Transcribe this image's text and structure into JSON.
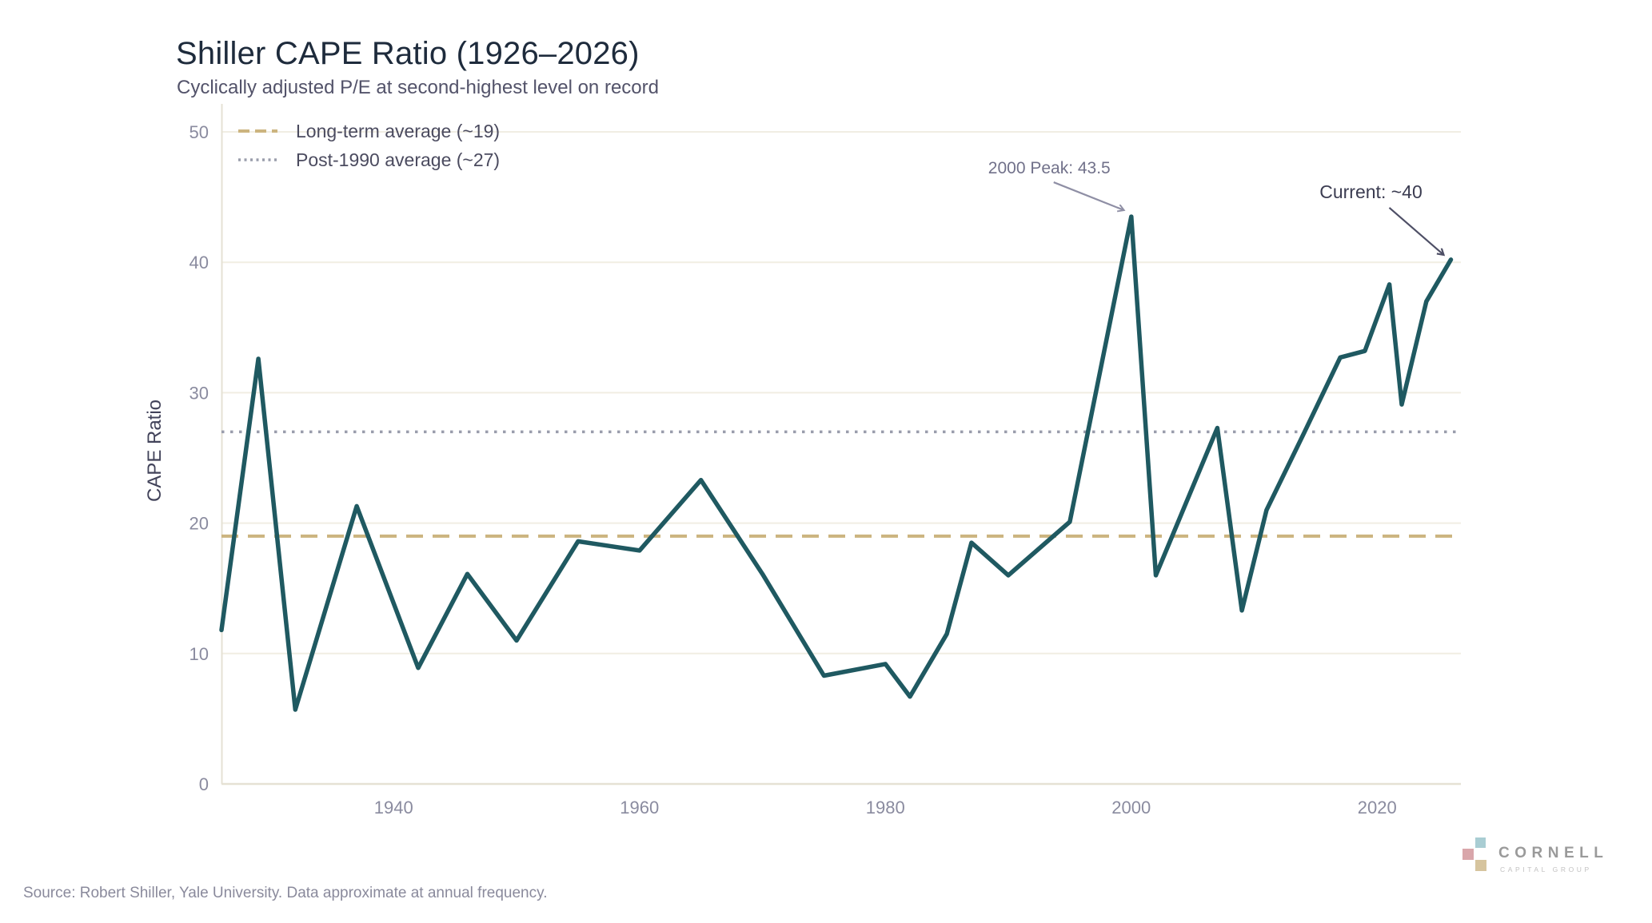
{
  "header": {
    "title": "Shiller CAPE Ratio (1926–2026)",
    "subtitle": "Cyclically adjusted P/E at second-highest level on record"
  },
  "chart_data": {
    "type": "line",
    "title": "Shiller CAPE Ratio (1926–2026)",
    "subtitle": "Cyclically adjusted P/E at second-highest level on record",
    "xlabel": "",
    "ylabel": "CAPE Ratio",
    "xlim": [
      1926,
      2027
    ],
    "ylim": [
      0,
      50
    ],
    "grid": true,
    "legend_position": "top-left",
    "yticks": [
      0,
      10,
      20,
      30,
      40,
      50
    ],
    "xticks": [
      1940,
      1960,
      1980,
      2000,
      2020
    ],
    "line_color": "#1f5961",
    "series": [
      {
        "name": "CAPE Ratio",
        "points": [
          [
            1926,
            11.8
          ],
          [
            1929,
            32.6
          ],
          [
            1932,
            5.7
          ],
          [
            1937,
            21.3
          ],
          [
            1942,
            8.9
          ],
          [
            1946,
            16.1
          ],
          [
            1950,
            11.0
          ],
          [
            1955,
            18.6
          ],
          [
            1960,
            17.9
          ],
          [
            1965,
            23.3
          ],
          [
            1970,
            16.1
          ],
          [
            1975,
            8.3
          ],
          [
            1980,
            9.2
          ],
          [
            1982,
            6.7
          ],
          [
            1985,
            11.5
          ],
          [
            1987,
            18.5
          ],
          [
            1990,
            16.0
          ],
          [
            1995,
            20.1
          ],
          [
            2000,
            43.5
          ],
          [
            2002,
            16.0
          ],
          [
            2007,
            27.3
          ],
          [
            2009,
            13.3
          ],
          [
            2011,
            21.0
          ],
          [
            2014,
            26.8
          ],
          [
            2017,
            32.7
          ],
          [
            2019,
            33.2
          ],
          [
            2021,
            38.3
          ],
          [
            2022,
            29.1
          ],
          [
            2024,
            37.0
          ],
          [
            2026,
            40.2
          ]
        ]
      }
    ],
    "reference_lines": [
      {
        "label": "Long-term average (~19)",
        "value": 19,
        "style": "dashed",
        "color": "#ccb47f"
      },
      {
        "label": "Post-1990 average (~27)",
        "value": 27,
        "style": "dotted",
        "color": "#9a9dac"
      }
    ],
    "annotations": [
      {
        "text": "2000 Peak: 43.5",
        "target_year": 2000,
        "target_value": 43.5
      },
      {
        "text": "Current: ~40",
        "target_year": 2026,
        "target_value": 40.2
      }
    ]
  },
  "footer": {
    "source": "Source: Robert Shiller, Yale University. Data approximate at annual frequency.",
    "logo": {
      "name": "CORNELL",
      "subname": "CAPITAL GROUP",
      "square_colors": [
        "#a9cdd3",
        "#d9a6aa",
        "#d6c49e"
      ]
    }
  }
}
